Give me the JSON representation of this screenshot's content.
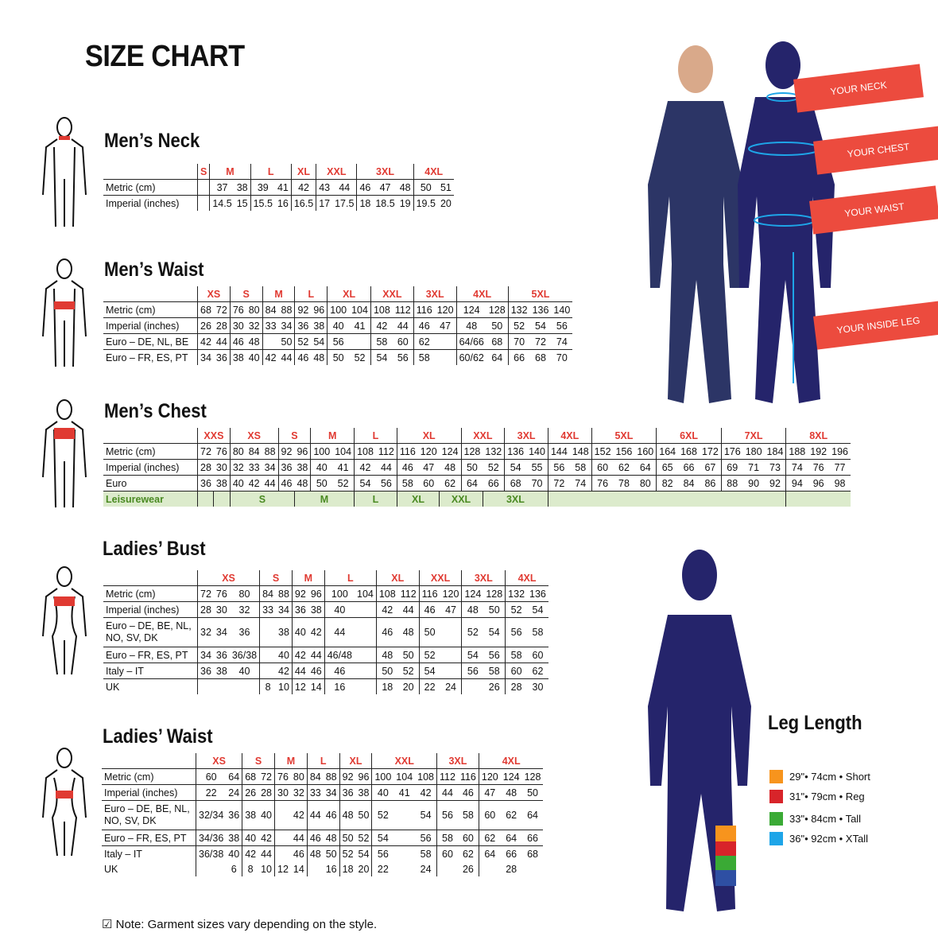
{
  "title": "SIZE CHART",
  "mens_neck": {
    "title": "Men’s Neck",
    "groups": [
      [
        "S",
        1
      ],
      [
        "M",
        2
      ],
      [
        "L",
        2
      ],
      [
        "XL",
        1
      ],
      [
        "XXL",
        2
      ],
      [
        "3XL",
        3
      ],
      [
        "4XL",
        2
      ]
    ],
    "rows": [
      {
        "label": "Metric (cm)",
        "cells": [
          "",
          "37",
          "38",
          "39",
          "41",
          "42",
          "43",
          "44",
          "46",
          "47",
          "48",
          "50",
          "51"
        ]
      },
      {
        "label": "Imperial (inches)",
        "cells": [
          "",
          "14.5",
          "15",
          "15.5",
          "16",
          "16.5",
          "17",
          "17.5",
          "18",
          "18.5",
          "19",
          "19.5",
          "20"
        ]
      }
    ]
  },
  "mens_waist": {
    "title": "Men’s Waist",
    "groups": [
      [
        "XS",
        2
      ],
      [
        "S",
        2
      ],
      [
        "M",
        2
      ],
      [
        "L",
        2
      ],
      [
        "XL",
        2
      ],
      [
        "XXL",
        2
      ],
      [
        "3XL",
        2
      ],
      [
        "4XL",
        2
      ],
      [
        "5XL",
        3
      ]
    ],
    "rows": [
      {
        "label": "Metric (cm)",
        "cells": [
          "68",
          "72",
          "76",
          "80",
          "84",
          "88",
          "92",
          "96",
          "100",
          "104",
          "108",
          "112",
          "116",
          "120",
          "124",
          "128",
          "132",
          "136",
          "140"
        ]
      },
      {
        "label": "Imperial (inches)",
        "cells": [
          "26",
          "28",
          "30",
          "32",
          "33",
          "34",
          "36",
          "38",
          "40",
          "41",
          "42",
          "44",
          "46",
          "47",
          "48",
          "50",
          "52",
          "54",
          "56"
        ]
      },
      {
        "label": "Euro – DE, NL, BE",
        "cells": [
          "42",
          "44",
          "46",
          "48",
          "",
          "50",
          "52",
          "54",
          "56",
          "",
          "58",
          "60",
          "62",
          "",
          "64/66",
          "68",
          "70",
          "72",
          "74"
        ]
      },
      {
        "label": "Euro – FR, ES, PT",
        "cells": [
          "34",
          "36",
          "38",
          "40",
          "42",
          "44",
          "46",
          "48",
          "50",
          "52",
          "54",
          "56",
          "58",
          "",
          "60/62",
          "64",
          "66",
          "68",
          "70"
        ]
      }
    ]
  },
  "mens_chest": {
    "title": "Men’s Chest",
    "groups": [
      [
        "XXS",
        2
      ],
      [
        "XS",
        3
      ],
      [
        "S",
        2
      ],
      [
        "M",
        2
      ],
      [
        "L",
        2
      ],
      [
        "XL",
        3
      ],
      [
        "XXL",
        2
      ],
      [
        "3XL",
        2
      ],
      [
        "4XL",
        2
      ],
      [
        "5XL",
        3
      ],
      [
        "6XL",
        3
      ],
      [
        "7XL",
        3
      ],
      [
        "8XL",
        3
      ]
    ],
    "rows": [
      {
        "label": "Metric (cm)",
        "cells": [
          "72",
          "76",
          "80",
          "84",
          "88",
          "92",
          "96",
          "100",
          "104",
          "108",
          "112",
          "116",
          "120",
          "124",
          "128",
          "132",
          "136",
          "140",
          "144",
          "148",
          "152",
          "156",
          "160",
          "164",
          "168",
          "172",
          "176",
          "180",
          "184",
          "188",
          "192",
          "196"
        ]
      },
      {
        "label": "Imperial (inches)",
        "cells": [
          "28",
          "30",
          "32",
          "33",
          "34",
          "36",
          "38",
          "40",
          "41",
          "42",
          "44",
          "46",
          "47",
          "48",
          "50",
          "52",
          "54",
          "55",
          "56",
          "58",
          "60",
          "62",
          "64",
          "65",
          "66",
          "67",
          "69",
          "71",
          "73",
          "74",
          "76",
          "77"
        ]
      },
      {
        "label": "Euro",
        "cells": [
          "36",
          "38",
          "40",
          "42",
          "44",
          "46",
          "48",
          "50",
          "52",
          "54",
          "56",
          "58",
          "60",
          "62",
          "64",
          "66",
          "68",
          "70",
          "72",
          "74",
          "76",
          "78",
          "80",
          "82",
          "84",
          "86",
          "88",
          "90",
          "92",
          "94",
          "96",
          "98"
        ]
      }
    ],
    "leisurewear": {
      "label": "Leisurewear",
      "cells": [
        [
          "",
          1
        ],
        [
          "",
          1
        ],
        [
          "S",
          4
        ],
        [
          "M",
          3
        ],
        [
          "L",
          2
        ],
        [
          "XL",
          2
        ],
        [
          "XXL",
          2
        ],
        [
          "3XL",
          3
        ],
        [
          "",
          11
        ],
        [
          "",
          3
        ]
      ]
    }
  },
  "ladies_bust": {
    "title": "Ladies’ Bust",
    "groups": [
      [
        "XS",
        3
      ],
      [
        "S",
        2
      ],
      [
        "M",
        2
      ],
      [
        "L",
        2
      ],
      [
        "XL",
        2
      ],
      [
        "XXL",
        2
      ],
      [
        "3XL",
        2
      ],
      [
        "4XL",
        2
      ]
    ],
    "rows": [
      {
        "label": "Metric (cm)",
        "cells": [
          "72",
          "76",
          "80",
          "84",
          "88",
          "92",
          "96",
          "100",
          "104",
          "108",
          "112",
          "116",
          "120",
          "124",
          "128",
          "132",
          "136"
        ]
      },
      {
        "label": "Imperial (inches)",
        "cells": [
          "28",
          "30",
          "32",
          "33",
          "34",
          "36",
          "38",
          "40",
          "",
          "42",
          "44",
          "46",
          "47",
          "48",
          "50",
          "52",
          "54"
        ]
      },
      {
        "label": "Euro –  DE, BE, NL, NO, SV, DK",
        "tall": true,
        "cells": [
          "32",
          "34",
          "36",
          "",
          "38",
          "40",
          "42",
          "44",
          "",
          "46",
          "48",
          "50",
          "",
          "52",
          "54",
          "56",
          "58"
        ]
      },
      {
        "label": "Euro – FR, ES, PT",
        "cells": [
          "34",
          "36",
          "36/38",
          "",
          "40",
          "42",
          "44",
          "46/48",
          "",
          "48",
          "50",
          "52",
          "",
          "54",
          "56",
          "58",
          "60"
        ]
      },
      {
        "label": "Italy – IT",
        "cells": [
          "36",
          "38",
          "40",
          "",
          "42",
          "44",
          "46",
          "46",
          "",
          "50",
          "52",
          "54",
          "",
          "56",
          "58",
          "60",
          "62"
        ]
      },
      {
        "label": "UK",
        "cells": [
          "",
          "",
          "",
          "8",
          "10",
          "12",
          "14",
          "16",
          "",
          "18",
          "20",
          "22",
          "24",
          "",
          "26",
          "28",
          "30"
        ]
      }
    ]
  },
  "ladies_waist": {
    "title": "Ladies’ Waist",
    "groups": [
      [
        "XS",
        2
      ],
      [
        "S",
        2
      ],
      [
        "M",
        2
      ],
      [
        "L",
        2
      ],
      [
        "XL",
        2
      ],
      [
        "XXL",
        3
      ],
      [
        "3XL",
        2
      ],
      [
        "4XL",
        3
      ]
    ],
    "rows": [
      {
        "label": "Metric (cm)",
        "cells": [
          "60",
          "64",
          "68",
          "72",
          "76",
          "80",
          "84",
          "88",
          "92",
          "96",
          "100",
          "104",
          "108",
          "112",
          "116",
          "120",
          "124",
          "128"
        ]
      },
      {
        "label": "Imperial (inches)",
        "cells": [
          "22",
          "24",
          "26",
          "28",
          "30",
          "32",
          "33",
          "34",
          "36",
          "38",
          "40",
          "41",
          "42",
          "44",
          "46",
          "47",
          "48",
          "50"
        ]
      },
      {
        "label": "Euro – DE, BE, NL, NO, SV, DK",
        "tall": true,
        "cells": [
          "32/34",
          "36",
          "38",
          "40",
          "",
          "42",
          "44",
          "46",
          "48",
          "50",
          "52",
          "",
          "54",
          "56",
          "58",
          "60",
          "62",
          "64"
        ]
      },
      {
        "label": "Euro – FR, ES, PT",
        "cells": [
          "34/36",
          "38",
          "40",
          "42",
          "",
          "44",
          "46",
          "48",
          "50",
          "52",
          "54",
          "",
          "56",
          "58",
          "60",
          "62",
          "64",
          "66"
        ]
      },
      {
        "label": "Italy – IT",
        "cells": [
          "36/38",
          "40",
          "42",
          "44",
          "",
          "46",
          "48",
          "50",
          "52",
          "54",
          "56",
          "",
          "58",
          "60",
          "62",
          "64",
          "66",
          "68"
        ]
      },
      {
        "label": "UK",
        "noborder": true,
        "cells": [
          "",
          "6",
          "8",
          "10",
          "12",
          "14",
          "",
          "16",
          "18",
          "20",
          "22",
          "",
          "24",
          "",
          "26",
          "",
          "28",
          ""
        ]
      }
    ]
  },
  "measure_banners": [
    "YOUR NECK",
    "YOUR CHEST",
    "YOUR WAIST",
    "YOUR INSIDE LEG"
  ],
  "leg_length": {
    "title": "Leg Length",
    "items": [
      {
        "text": "29\"• 74cm • Short",
        "color": "#f7941d"
      },
      {
        "text": "31\"• 79cm • Reg",
        "color": "#d8242a"
      },
      {
        "text": "33\"• 84cm • Tall",
        "color": "#3aaa35"
      },
      {
        "text": "36\"• 92cm • XTall",
        "color": "#1ea5e8"
      }
    ]
  },
  "note": "Note: Garment sizes vary depending on the style.",
  "colors": {
    "accent": "#e03a32",
    "navy": "#25246b",
    "leisure_bg": "#dcebcc"
  }
}
